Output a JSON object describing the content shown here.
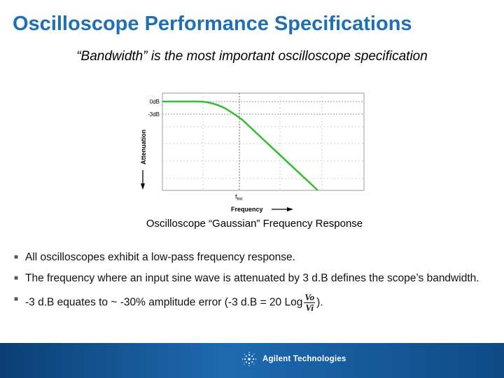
{
  "slide": {
    "title": "Oscilloscope Performance Specifications",
    "subtitle": "“Bandwidth” is the most important oscilloscope specification",
    "caption": "Oscilloscope “Gaussian” Frequency Response"
  },
  "chart_data": {
    "type": "line",
    "ylabel": "Attenuation",
    "xlabel": "Frequency",
    "y_tick_labels": [
      "0dB",
      "-3dB"
    ],
    "x_tick_labels": [
      "fBW"
    ],
    "bw_marker": "f",
    "bw_marker_sub": "BW",
    "series_color": "#33bb33",
    "grid": true
  },
  "bullets": {
    "item1": "All oscilloscopes exhibit a low-pass frequency response.",
    "item2": "The frequency where an input sine wave is attenuated by 3 d.B defines the scope’s bandwidth.",
    "item3_before": "-3 d.B equates to ~ -30% amplitude error (-3 d.B = 20 Log",
    "item3_num": "Vo",
    "item3_den": "Vi",
    "item3_after": ")."
  },
  "footer": {
    "brand": "Agilent Technologies",
    "logo_icon": "agilent-spark-icon",
    "colors": {
      "start": "#0b3f74",
      "mid": "#1e6ab0",
      "end": "#0f4a86"
    }
  },
  "colors": {
    "title": "#1f6fb5",
    "curve": "#33bb33"
  }
}
